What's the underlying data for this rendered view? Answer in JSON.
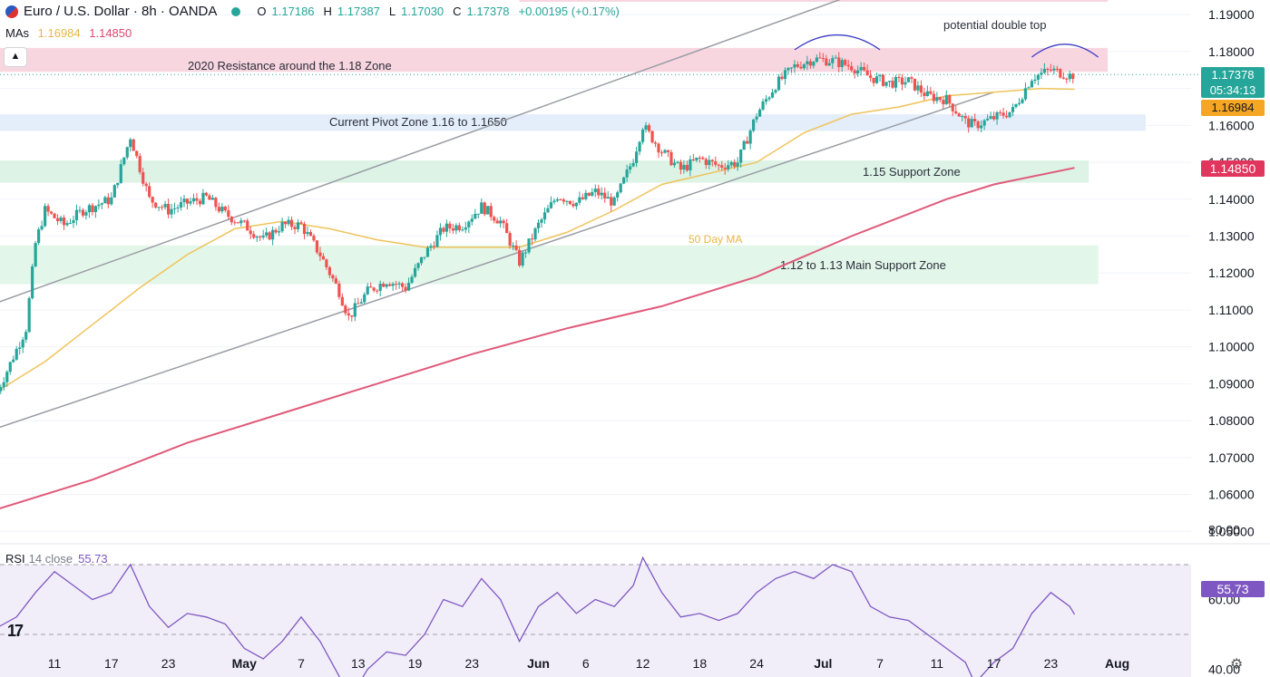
{
  "header": {
    "symbol": "Euro / U.S. Dollar · 8h · OANDA",
    "open_label": "O",
    "open": "1.17186",
    "high_label": "H",
    "high": "1.17387",
    "low_label": "L",
    "low": "1.17030",
    "close_label": "C",
    "close": "1.17378",
    "change": "+0.00195 (+0.17%)"
  },
  "mas": {
    "label": "MAs",
    "ma1": "1.16984",
    "ma2": "1.14850"
  },
  "rsi": {
    "label": "RSI",
    "params": "14 close",
    "value": "55.73"
  },
  "price_tags": {
    "last": "1.17378",
    "countdown": "05:34:13",
    "ma1": "1.16984",
    "ma2": "1.14850",
    "rsi": "55.73"
  },
  "colors": {
    "up": "#26a69a",
    "down": "#ef5350",
    "ma50": "#f0c35a",
    "ma200": "#e05a7a",
    "rsi": "#7e57c2"
  },
  "chart_data": [
    {
      "type": "candlestick",
      "title": "Euro / U.S. Dollar · 8h · OANDA",
      "ylim": [
        1.0425,
        1.195
      ],
      "y_ticks": [
        "1.05000",
        "1.06000",
        "1.07000",
        "1.08000",
        "1.09000",
        "1.10000",
        "1.11000",
        "1.12000",
        "1.13000",
        "1.14000",
        "1.15000",
        "1.16000",
        "1.17000",
        "1.18000",
        "1.19000"
      ],
      "x_ticks": [
        {
          "label": "11",
          "day": 11
        },
        {
          "label": "17",
          "day": 17
        },
        {
          "label": "23",
          "day": 23
        },
        {
          "label": "May",
          "day": 31,
          "bold": true
        },
        {
          "label": "7",
          "day": 37
        },
        {
          "label": "13",
          "day": 43
        },
        {
          "label": "19",
          "day": 49
        },
        {
          "label": "23",
          "day": 55
        },
        {
          "label": "Jun",
          "day": 62,
          "bold": true
        },
        {
          "label": "6",
          "day": 67
        },
        {
          "label": "12",
          "day": 73
        },
        {
          "label": "18",
          "day": 79
        },
        {
          "label": "24",
          "day": 85
        },
        {
          "label": "Jul",
          "day": 92,
          "bold": true
        },
        {
          "label": "7",
          "day": 98
        },
        {
          "label": "11",
          "day": 104
        },
        {
          "label": "17",
          "day": 110
        },
        {
          "label": "23",
          "day": 116
        },
        {
          "label": "Aug",
          "day": 123,
          "bold": true
        }
      ],
      "anchors": [
        [
          5,
          1.088
        ],
        [
          6,
          1.0935
        ],
        [
          8,
          1.105
        ],
        [
          9,
          1.128
        ],
        [
          10,
          1.137
        ],
        [
          12,
          1.133
        ],
        [
          14,
          1.137
        ],
        [
          17,
          1.14
        ],
        [
          19,
          1.157
        ],
        [
          21,
          1.14
        ],
        [
          23,
          1.137
        ],
        [
          25,
          1.139
        ],
        [
          27,
          1.1405
        ],
        [
          29,
          1.136
        ],
        [
          31,
          1.133
        ],
        [
          33,
          1.129
        ],
        [
          35,
          1.133
        ],
        [
          37,
          1.133
        ],
        [
          39,
          1.125
        ],
        [
          41,
          1.115
        ],
        [
          42,
          1.108
        ],
        [
          44,
          1.115
        ],
        [
          46,
          1.118
        ],
        [
          48,
          1.116
        ],
        [
          50,
          1.125
        ],
        [
          52,
          1.132
        ],
        [
          54,
          1.133
        ],
        [
          56,
          1.138
        ],
        [
          58,
          1.134
        ],
        [
          60,
          1.123
        ],
        [
          62,
          1.133
        ],
        [
          64,
          1.141
        ],
        [
          66,
          1.139
        ],
        [
          68,
          1.142
        ],
        [
          70,
          1.139
        ],
        [
          72,
          1.151
        ],
        [
          73,
          1.16
        ],
        [
          75,
          1.153
        ],
        [
          77,
          1.148
        ],
        [
          79,
          1.151
        ],
        [
          81,
          1.149
        ],
        [
          83,
          1.15
        ],
        [
          85,
          1.163
        ],
        [
          87,
          1.171
        ],
        [
          89,
          1.176
        ],
        [
          91,
          1.178
        ],
        [
          93,
          1.1775
        ],
        [
          95,
          1.176
        ],
        [
          97,
          1.173
        ],
        [
          99,
          1.1715
        ],
        [
          101,
          1.172
        ],
        [
          103,
          1.168
        ],
        [
          105,
          1.167
        ],
        [
          107,
          1.161
        ],
        [
          108,
          1.16
        ],
        [
          110,
          1.162
        ],
        [
          112,
          1.164
        ],
        [
          114,
          1.173
        ],
        [
          116,
          1.175
        ],
        [
          118,
          1.1735
        ],
        [
          118.5,
          1.1738
        ]
      ],
      "ma50": [
        [
          5,
          1.088
        ],
        [
          10,
          1.096
        ],
        [
          15,
          1.106
        ],
        [
          20,
          1.116
        ],
        [
          25,
          1.125
        ],
        [
          30,
          1.132
        ],
        [
          35,
          1.134
        ],
        [
          40,
          1.132
        ],
        [
          45,
          1.129
        ],
        [
          50,
          1.127
        ],
        [
          55,
          1.127
        ],
        [
          60,
          1.127
        ],
        [
          65,
          1.131
        ],
        [
          70,
          1.137
        ],
        [
          75,
          1.144
        ],
        [
          80,
          1.147
        ],
        [
          85,
          1.15
        ],
        [
          90,
          1.158
        ],
        [
          95,
          1.163
        ],
        [
          100,
          1.165
        ],
        [
          105,
          1.168
        ],
        [
          110,
          1.169
        ],
        [
          115,
          1.17
        ],
        [
          118.5,
          1.1698
        ]
      ],
      "ma200": [
        [
          5,
          1.056
        ],
        [
          15,
          1.064
        ],
        [
          25,
          1.074
        ],
        [
          35,
          1.082
        ],
        [
          45,
          1.09
        ],
        [
          55,
          1.098
        ],
        [
          65,
          1.105
        ],
        [
          75,
          1.111
        ],
        [
          85,
          1.119
        ],
        [
          95,
          1.13
        ],
        [
          105,
          1.14
        ],
        [
          110,
          1.144
        ],
        [
          118.5,
          1.1485
        ]
      ],
      "zones": [
        {
          "label": "2020 Resistance around the 1.18 Zone",
          "y0": 1.1745,
          "y1": 1.181,
          "x0": 5,
          "x1": 122,
          "color": "#f8d6e0"
        },
        {
          "label": "",
          "y0": 1.1935,
          "y1": 1.1955,
          "x0": 60,
          "x1": 122,
          "color": "#f8d6e0"
        },
        {
          "label": "Current Pivot Zone 1.16 to 1.1650",
          "y0": 1.1585,
          "y1": 1.163,
          "x0": 5,
          "x1": 126,
          "color": "#e3eefa"
        },
        {
          "label": "1.15 Support Zone",
          "y0": 1.1445,
          "y1": 1.1505,
          "x0": 5,
          "x1": 120,
          "color": "#dcf3e6"
        },
        {
          "label": "1.12 to 1.13 Main Support Zone",
          "y0": 1.117,
          "y1": 1.1275,
          "x0": 5,
          "x1": 121,
          "color": "#e3f6ea"
        }
      ],
      "trendlines": [
        {
          "p0": [
            5,
            1.112
          ],
          "p1": [
            98,
            1.198
          ]
        },
        {
          "p0": [
            5,
            1.078
          ],
          "p1": [
            110,
            1.169
          ]
        }
      ],
      "annotations": [
        {
          "text": "potential double top",
          "x": 105,
          "y": 1.1885
        },
        {
          "text": "50 Day MA",
          "x": 76,
          "y": 1.129
        }
      ],
      "arcs": [
        {
          "x0": 89,
          "x1": 98,
          "y": 1.1805,
          "h": 0.004
        },
        {
          "x0": 114,
          "x1": 121,
          "y": 1.1785,
          "h": 0.0035
        }
      ]
    },
    {
      "type": "line",
      "title": "RSI 14 close",
      "ylim": [
        30,
        80
      ],
      "y_ticks": [
        "80.00",
        "60.00",
        "40.00"
      ],
      "bands": [
        70,
        50,
        30
      ],
      "values": [
        [
          5,
          52
        ],
        [
          7,
          55
        ],
        [
          9,
          62
        ],
        [
          11,
          68
        ],
        [
          13,
          64
        ],
        [
          15,
          60
        ],
        [
          17,
          62
        ],
        [
          19,
          70
        ],
        [
          21,
          58
        ],
        [
          23,
          52
        ],
        [
          25,
          56
        ],
        [
          27,
          55
        ],
        [
          29,
          53
        ],
        [
          31,
          46
        ],
        [
          33,
          43
        ],
        [
          35,
          48
        ],
        [
          37,
          55
        ],
        [
          39,
          48
        ],
        [
          41,
          38
        ],
        [
          42,
          31
        ],
        [
          44,
          40
        ],
        [
          46,
          45
        ],
        [
          48,
          44
        ],
        [
          50,
          50
        ],
        [
          52,
          60
        ],
        [
          54,
          58
        ],
        [
          56,
          66
        ],
        [
          58,
          60
        ],
        [
          60,
          48
        ],
        [
          62,
          58
        ],
        [
          64,
          62
        ],
        [
          66,
          56
        ],
        [
          68,
          60
        ],
        [
          70,
          58
        ],
        [
          72,
          64
        ],
        [
          73,
          72
        ],
        [
          75,
          62
        ],
        [
          77,
          55
        ],
        [
          79,
          56
        ],
        [
          81,
          54
        ],
        [
          83,
          56
        ],
        [
          85,
          62
        ],
        [
          87,
          66
        ],
        [
          89,
          68
        ],
        [
          91,
          66
        ],
        [
          93,
          70
        ],
        [
          95,
          68
        ],
        [
          97,
          58
        ],
        [
          99,
          55
        ],
        [
          101,
          54
        ],
        [
          103,
          50
        ],
        [
          105,
          46
        ],
        [
          107,
          42
        ],
        [
          108,
          36
        ],
        [
          110,
          42
        ],
        [
          112,
          46
        ],
        [
          114,
          56
        ],
        [
          116,
          62
        ],
        [
          118,
          58
        ],
        [
          118.5,
          55.73
        ]
      ]
    }
  ]
}
